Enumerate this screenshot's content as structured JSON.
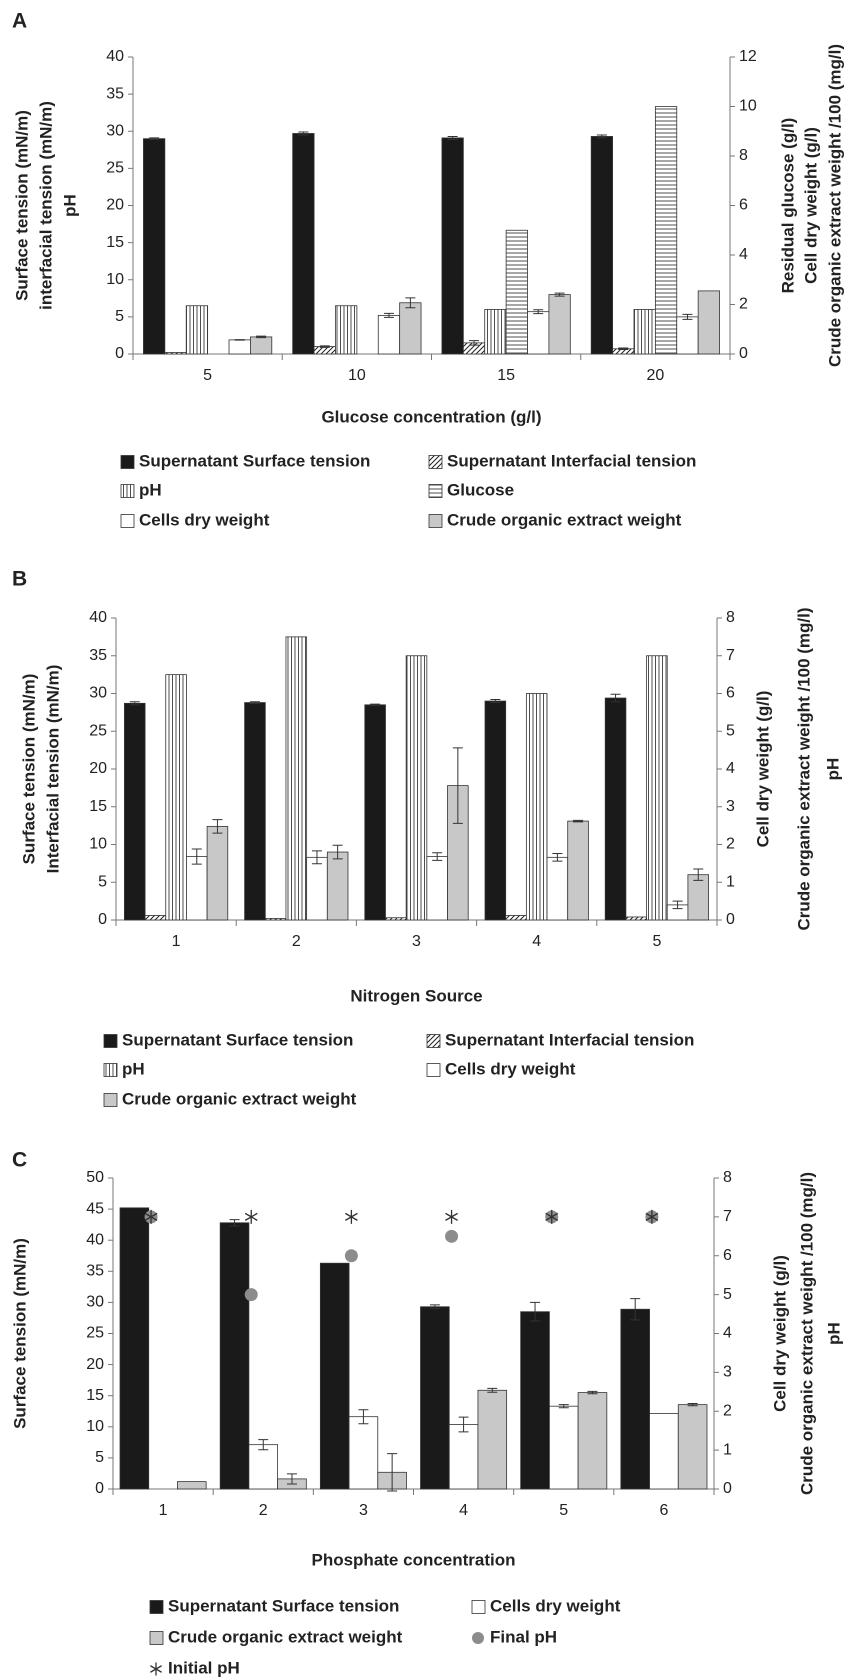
{
  "chart_data": [
    {
      "type": "bar",
      "panel_label": "A",
      "xlabel": "Glucose concentration (g/l)",
      "ylabel": [
        "Surface tension (mN/m)",
        "interfacial tension (mN/m)",
        "pH"
      ],
      "y2label": [
        "Residual glucose (g/l)",
        "Cell dry weight   (g/l)",
        "Crude organic extract weight /100 (mg/l)"
      ],
      "categories": [
        "5",
        "10",
        "15",
        "20"
      ],
      "ylim": [
        0,
        40
      ],
      "yticks": [
        0,
        5,
        10,
        15,
        20,
        25,
        30,
        35,
        40
      ],
      "y2lim": [
        0,
        12
      ],
      "y2ticks": [
        0,
        2,
        4,
        6,
        8,
        10,
        12
      ],
      "grid": false,
      "series": [
        {
          "name": "Supernatant Surface tension",
          "pattern": "solid",
          "color": "#1a1a1a",
          "values": [
            29,
            29.7,
            29.1,
            29.3
          ],
          "errors": [
            0.1,
            0.2,
            0.2,
            0.2
          ]
        },
        {
          "name": "Supernatant Interfacial tension",
          "pattern": "diagonal",
          "color": "#ffffff",
          "values": [
            0.2,
            1.0,
            1.5,
            0.7
          ],
          "errors": [
            null,
            0.1,
            0.3,
            0.1
          ]
        },
        {
          "name": "pH",
          "pattern": "vertical",
          "color": "#ffffff",
          "values": [
            6.5,
            6.5,
            6,
            6
          ],
          "errors": [
            null,
            null,
            null,
            null
          ]
        },
        {
          "name": "Glucose",
          "pattern": "horizontal",
          "color": "#ffffff",
          "axis": "y2",
          "values": [
            0,
            0,
            5,
            10
          ],
          "errors": [
            null,
            null,
            null,
            null
          ]
        },
        {
          "name": "Cells dry weight",
          "pattern": "solid",
          "color": "#ffffff",
          "axis": "y2",
          "values": [
            0.57,
            1.56,
            1.71,
            1.5
          ],
          "errors": [
            0.01,
            0.08,
            0.08,
            0.1
          ]
        },
        {
          "name": "Crude organic extract weight",
          "pattern": "solid",
          "color": "#c8c8c8",
          "axis": "y2",
          "values": [
            0.69,
            2.07,
            2.4,
            2.55
          ],
          "errors": [
            0.03,
            0.2,
            0.06,
            null
          ]
        }
      ]
    },
    {
      "type": "bar",
      "panel_label": "B",
      "xlabel": "Nitrogen Source",
      "ylabel": [
        "Surface tension (mN/m)",
        "Interfacial tension (mN/m)"
      ],
      "y2label": [
        "Cell dry weight   (g/l)",
        "Crude organic extract weight /100 (mg/l)",
        "pH"
      ],
      "categories": [
        "1",
        "2",
        "3",
        "4",
        "5"
      ],
      "ylim": [
        0,
        40
      ],
      "yticks": [
        0,
        5,
        10,
        15,
        20,
        25,
        30,
        35,
        40
      ],
      "y2lim": [
        0,
        8
      ],
      "y2ticks": [
        0,
        1,
        2,
        3,
        4,
        5,
        6,
        7,
        8
      ],
      "grid": false,
      "series": [
        {
          "name": "Supernatant Surface tension",
          "pattern": "solid",
          "color": "#1a1a1a",
          "values": [
            28.7,
            28.8,
            28.5,
            29.0,
            29.4
          ],
          "errors": [
            0.2,
            0.1,
            0.1,
            0.2,
            0.5
          ]
        },
        {
          "name": "Supernatant Interfacial tension",
          "pattern": "diagonal",
          "color": "#ffffff",
          "values": [
            0.6,
            0.2,
            0.3,
            0.6,
            0.4
          ],
          "errors": [
            null,
            null,
            null,
            null,
            null
          ]
        },
        {
          "name": "pH",
          "pattern": "vertical",
          "color": "#ffffff",
          "axis": "y2",
          "values": [
            6.5,
            7.5,
            7.0,
            6.0,
            7.0
          ],
          "errors": [
            null,
            null,
            null,
            null,
            null
          ]
        },
        {
          "name": "Cells dry weight",
          "pattern": "solid",
          "color": "#ffffff",
          "axis": "y2",
          "values": [
            1.68,
            1.66,
            1.68,
            1.66,
            0.4
          ],
          "errors": [
            0.2,
            0.17,
            0.1,
            0.1,
            0.1
          ]
        },
        {
          "name": "Crude organic extract weight",
          "pattern": "solid",
          "color": "#c8c8c8",
          "axis": "y2",
          "values": [
            2.48,
            1.8,
            3.56,
            2.62,
            1.2
          ],
          "errors": [
            0.18,
            0.18,
            1.0,
            0.02,
            0.15
          ]
        }
      ]
    },
    {
      "type": "bar",
      "panel_label": "C",
      "xlabel": "Phosphate concentration",
      "ylabel": [
        "Surface tension (mN/m)"
      ],
      "y2label": [
        "Cell dry weight   (g/l)",
        "Crude organic extract weight /100 (mg/l)",
        "pH"
      ],
      "categories": [
        "1",
        "2",
        "3",
        "4",
        "5",
        "6"
      ],
      "ylim": [
        0,
        50
      ],
      "yticks": [
        0,
        5,
        10,
        15,
        20,
        25,
        30,
        35,
        40,
        45,
        50
      ],
      "y2lim": [
        0,
        8
      ],
      "y2ticks": [
        0,
        1,
        2,
        3,
        4,
        5,
        6,
        7,
        8
      ],
      "grid": false,
      "series": [
        {
          "name": "Supernatant Surface tension",
          "pattern": "solid",
          "color": "#1a1a1a",
          "values": [
            45.2,
            42.8,
            36.3,
            29.3,
            28.5,
            28.9
          ],
          "errors": [
            null,
            0.5,
            null,
            0.3,
            1.5,
            1.7
          ]
        },
        {
          "name": "Cells dry weight",
          "pattern": "solid",
          "color": "#ffffff",
          "axis": "y2",
          "values": [
            0,
            1.14,
            1.86,
            1.66,
            2.13,
            1.94
          ],
          "errors": [
            null,
            0.13,
            0.18,
            0.19,
            0.04,
            null
          ]
        },
        {
          "name": "Crude organic extract weight",
          "pattern": "solid",
          "color": "#c8c8c8",
          "axis": "y2",
          "values": [
            0.19,
            0.26,
            0.43,
            2.54,
            2.48,
            2.17
          ],
          "errors": [
            null,
            0.13,
            0.48,
            0.05,
            0.03,
            0.03
          ]
        },
        {
          "name": "Final pH",
          "marker": "circle",
          "color": "#8c8c8c",
          "axis": "y2",
          "values": [
            7,
            5,
            6,
            6.5,
            7,
            7
          ]
        },
        {
          "name": "Initial pH",
          "marker": "asterisk",
          "color": "#333333",
          "axis": "y2",
          "values": [
            7,
            7,
            7,
            7,
            7,
            7
          ]
        }
      ]
    }
  ]
}
